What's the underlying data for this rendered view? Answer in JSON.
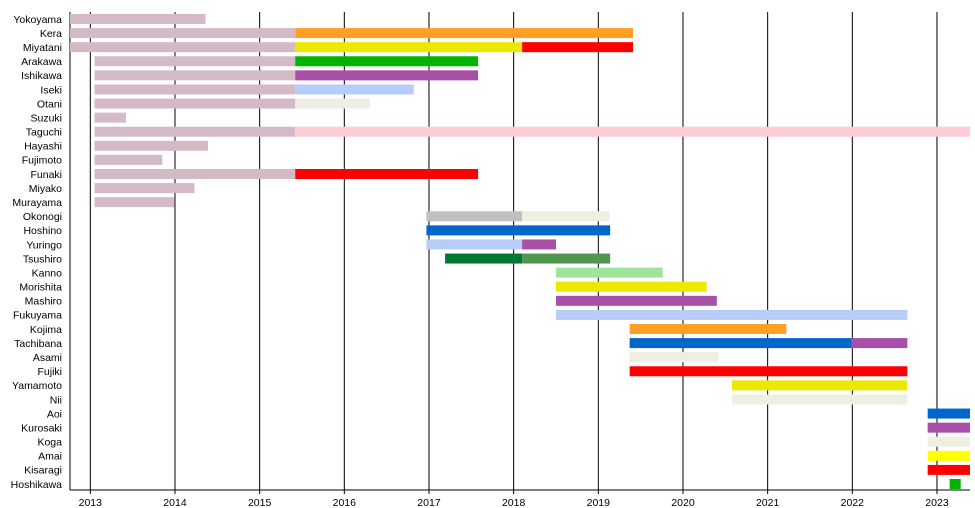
{
  "chart_data": {
    "type": "timeline",
    "title": "",
    "xlabel": "",
    "ylabel": "",
    "xlim": [
      2012.76,
      2023.39
    ],
    "x_ticks": [
      "2013",
      "2014",
      "2015",
      "2016",
      "2017",
      "2018",
      "2019",
      "2020",
      "2021",
      "2022",
      "2023"
    ],
    "grid": "vertical",
    "colors": {
      "pink": "#d4b9c7",
      "orange": "#ffa024",
      "yellow": "#ece800",
      "red": "#ff0000",
      "green": "#00b400",
      "purple": "#a84fa8",
      "lightblue": "#b6cdfa",
      "offwhite": "#eeeee2",
      "lightpink": "#ffcdd3",
      "gray": "#c0c0c0",
      "blue": "#0066cc",
      "darkgreen": "#007a33",
      "midgreen": "#4f974f",
      "lightgreen": "#9ee59a",
      "brightyellow": "#ffff00"
    },
    "rows": [
      {
        "name": "Yokoyama",
        "segments": [
          [
            2012.76,
            2014.36,
            "pink"
          ]
        ]
      },
      {
        "name": "Kera",
        "segments": [
          [
            2012.76,
            2015.42,
            "pink"
          ],
          [
            2015.42,
            2019.41,
            "orange"
          ]
        ]
      },
      {
        "name": "Miyatani",
        "segments": [
          [
            2012.76,
            2015.42,
            "pink"
          ],
          [
            2015.42,
            2018.1,
            "yellow"
          ],
          [
            2018.1,
            2019.41,
            "red"
          ]
        ]
      },
      {
        "name": "Arakawa",
        "segments": [
          [
            2013.05,
            2015.42,
            "pink"
          ],
          [
            2015.42,
            2017.58,
            "green"
          ]
        ]
      },
      {
        "name": "Ishikawa",
        "segments": [
          [
            2013.05,
            2015.42,
            "pink"
          ],
          [
            2015.42,
            2017.58,
            "purple"
          ]
        ]
      },
      {
        "name": "Iseki",
        "segments": [
          [
            2013.05,
            2015.42,
            "pink"
          ],
          [
            2015.42,
            2016.82,
            "lightblue"
          ]
        ]
      },
      {
        "name": "Otani",
        "segments": [
          [
            2013.05,
            2015.42,
            "pink"
          ],
          [
            2015.42,
            2016.3,
            "offwhite"
          ]
        ]
      },
      {
        "name": "Suzuki",
        "segments": [
          [
            2013.05,
            2013.42,
            "pink"
          ]
        ]
      },
      {
        "name": "Taguchi",
        "segments": [
          [
            2013.05,
            2015.42,
            "pink"
          ],
          [
            2015.42,
            2023.39,
            "lightpink"
          ]
        ]
      },
      {
        "name": "Hayashi",
        "segments": [
          [
            2013.05,
            2014.39,
            "pink"
          ]
        ]
      },
      {
        "name": "Fujimoto",
        "segments": [
          [
            2013.05,
            2013.85,
            "pink"
          ]
        ]
      },
      {
        "name": "Funaki",
        "segments": [
          [
            2013.05,
            2015.42,
            "pink"
          ],
          [
            2015.42,
            2017.58,
            "red"
          ]
        ]
      },
      {
        "name": "Miyako",
        "segments": [
          [
            2013.05,
            2014.23,
            "pink"
          ]
        ]
      },
      {
        "name": "Murayama",
        "segments": [
          [
            2013.05,
            2013.99,
            "pink"
          ]
        ]
      },
      {
        "name": "Okonogi",
        "segments": [
          [
            2016.97,
            2018.1,
            "gray"
          ],
          [
            2018.1,
            2019.13,
            "offwhite"
          ]
        ]
      },
      {
        "name": "Hoshino",
        "segments": [
          [
            2016.97,
            2019.14,
            "blue"
          ]
        ]
      },
      {
        "name": "Yuringo",
        "segments": [
          [
            2016.97,
            2018.1,
            "lightblue"
          ],
          [
            2018.1,
            2018.5,
            "purple"
          ]
        ]
      },
      {
        "name": "Tsushiro",
        "segments": [
          [
            2017.19,
            2018.1,
            "darkgreen"
          ],
          [
            2018.1,
            2019.14,
            "midgreen"
          ]
        ]
      },
      {
        "name": "Kanno",
        "segments": [
          [
            2018.5,
            2019.76,
            "lightgreen"
          ]
        ]
      },
      {
        "name": "Morishita",
        "segments": [
          [
            2018.5,
            2020.28,
            "yellow"
          ]
        ]
      },
      {
        "name": "Mashiro",
        "segments": [
          [
            2018.5,
            2020.4,
            "purple"
          ]
        ]
      },
      {
        "name": "Fukuyama",
        "segments": [
          [
            2018.5,
            2022.65,
            "lightblue"
          ]
        ]
      },
      {
        "name": "Kojima",
        "segments": [
          [
            2019.37,
            2021.22,
            "orange"
          ]
        ]
      },
      {
        "name": "Tachibana",
        "segments": [
          [
            2019.37,
            2021.99,
            "blue"
          ],
          [
            2021.99,
            2022.65,
            "purple"
          ]
        ]
      },
      {
        "name": "Asami",
        "segments": [
          [
            2019.37,
            2020.42,
            "offwhite"
          ]
        ]
      },
      {
        "name": "Fujiki",
        "segments": [
          [
            2019.37,
            2022.65,
            "red"
          ]
        ]
      },
      {
        "name": "Yamamoto",
        "segments": [
          [
            2020.58,
            2022.65,
            "yellow"
          ]
        ]
      },
      {
        "name": "Nii",
        "segments": [
          [
            2020.58,
            2022.65,
            "offwhite"
          ]
        ]
      },
      {
        "name": "Aoi",
        "segments": [
          [
            2022.89,
            2023.39,
            "blue"
          ]
        ]
      },
      {
        "name": "Kurosaki",
        "segments": [
          [
            2022.89,
            2023.39,
            "purple"
          ]
        ]
      },
      {
        "name": "Koga",
        "segments": [
          [
            2022.89,
            2023.39,
            "offwhite"
          ]
        ]
      },
      {
        "name": "Amai",
        "segments": [
          [
            2022.89,
            2023.39,
            "brightyellow"
          ]
        ]
      },
      {
        "name": "Kisaragi",
        "segments": [
          [
            2022.89,
            2023.39,
            "red"
          ]
        ]
      },
      {
        "name": "Hoshikawa",
        "segments": [
          [
            2023.15,
            2023.28,
            "green"
          ]
        ]
      }
    ]
  }
}
